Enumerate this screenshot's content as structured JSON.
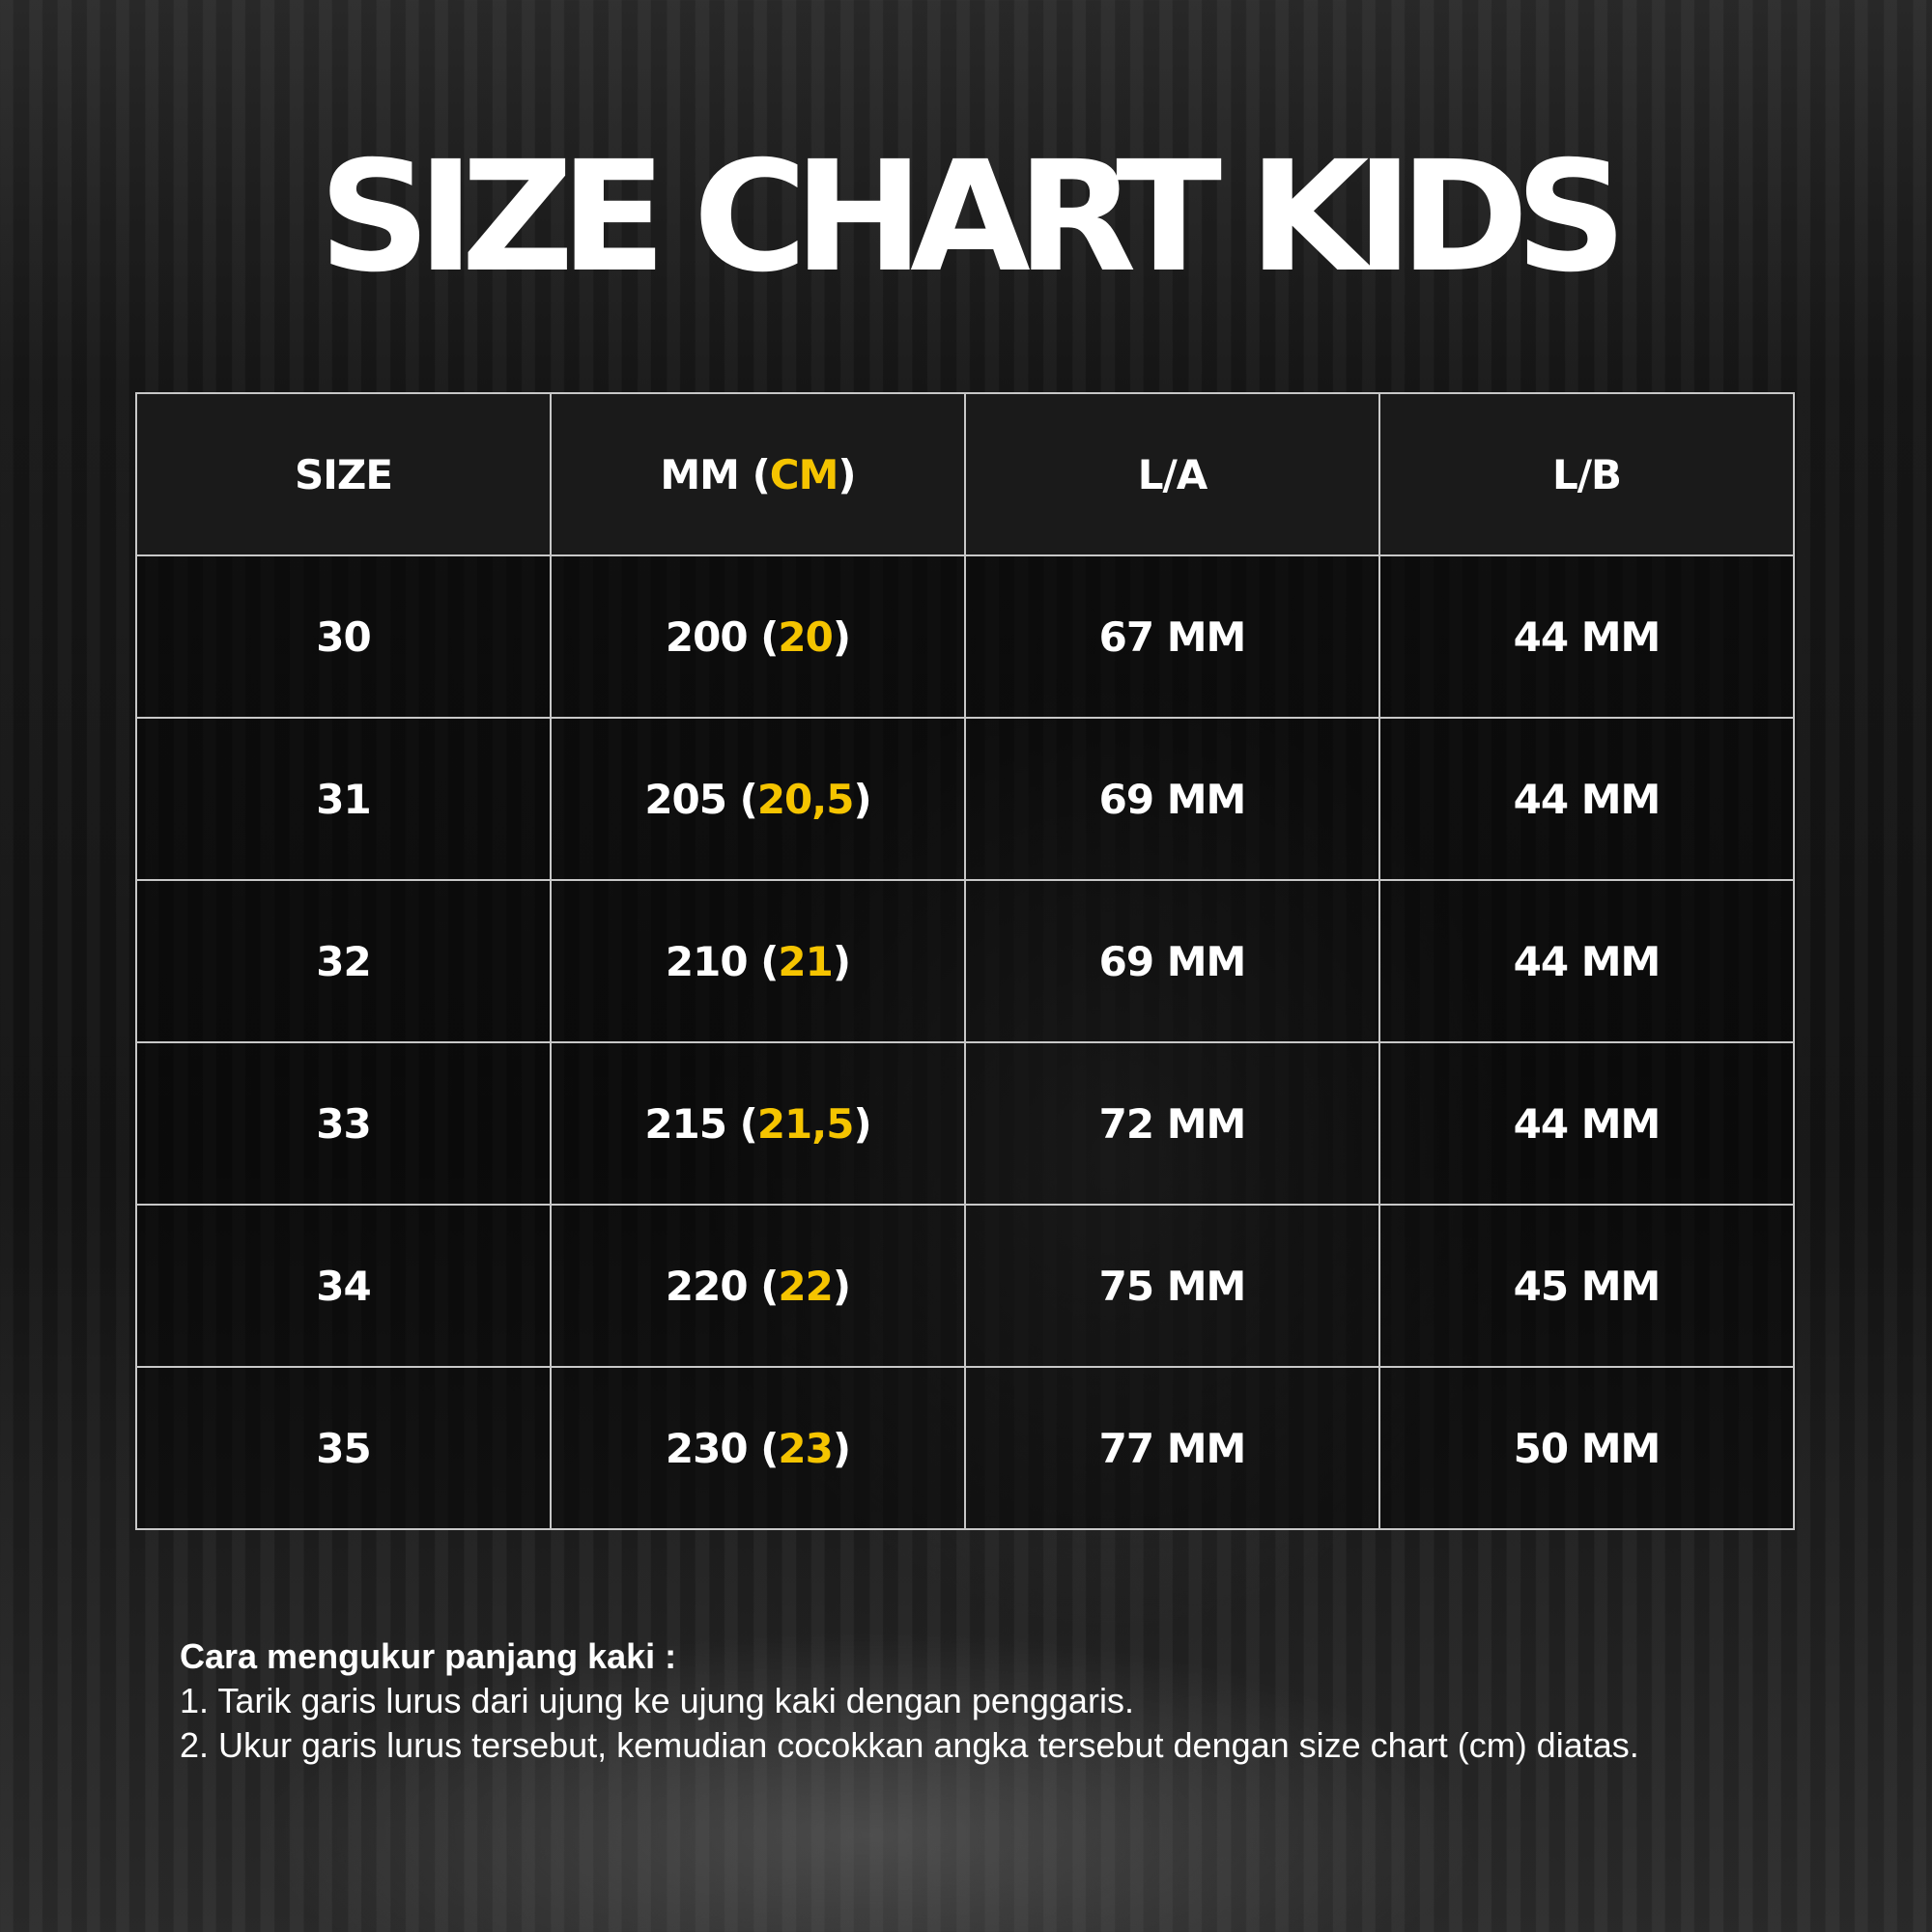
{
  "title": "SIZE CHART KIDS",
  "accent_color": "#f5c400",
  "headers": {
    "size": "SIZE",
    "mm": "MM",
    "cm": "CM",
    "la": "L/A",
    "lb": "L/B"
  },
  "rows": [
    {
      "size": "30",
      "mm": "200",
      "cm": "20",
      "la": "67 MM",
      "lb": "44 MM"
    },
    {
      "size": "31",
      "mm": "205",
      "cm": "20,5",
      "la": "69 MM",
      "lb": "44 MM"
    },
    {
      "size": "32",
      "mm": "210",
      "cm": "21",
      "la": "69 MM",
      "lb": "44 MM"
    },
    {
      "size": "33",
      "mm": "215",
      "cm": "21,5",
      "la": "72 MM",
      "lb": "44 MM"
    },
    {
      "size": "34",
      "mm": "220",
      "cm": "22",
      "la": "75 MM",
      "lb": "45 MM"
    },
    {
      "size": "35",
      "mm": "230",
      "cm": "23",
      "la": "77 MM",
      "lb": "50 MM"
    }
  ],
  "notes": {
    "heading": "Cara mengukur panjang kaki :",
    "steps": [
      "1. Tarik garis lurus dari ujung ke ujung kaki dengan penggaris.",
      "2. Ukur garis lurus tersebut, kemudian cocokkan angka tersebut dengan size chart (cm) diatas."
    ]
  }
}
